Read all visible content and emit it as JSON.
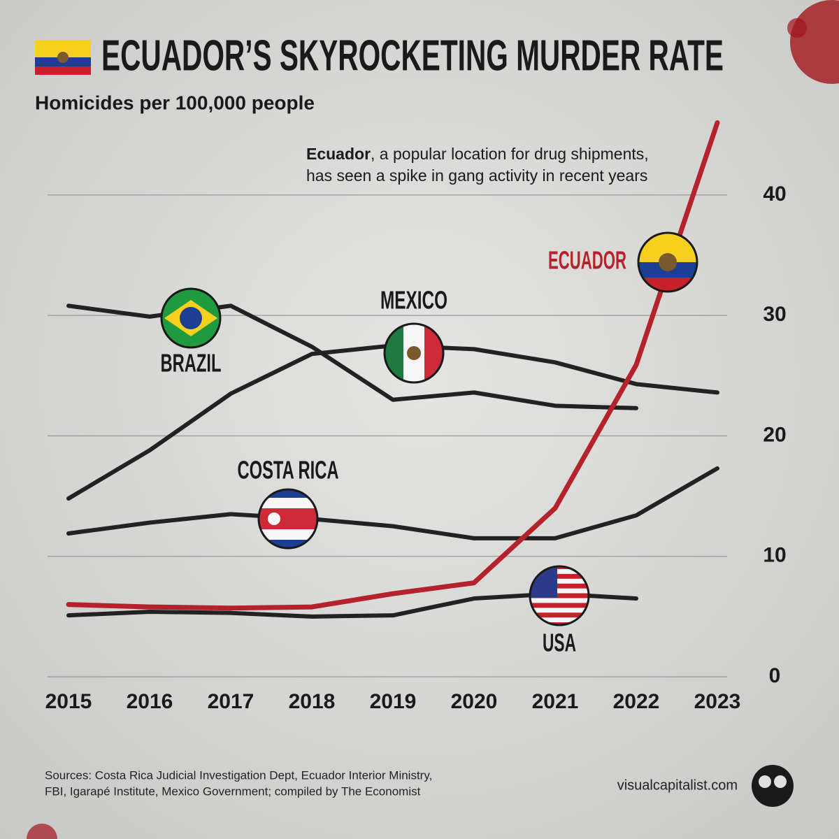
{
  "chart_data": {
    "type": "line",
    "title": "ECUADOR’S SKYROCKETING MURDER RATE",
    "subtitle": "Homicides per 100,000 people",
    "annotation": {
      "bold": "Ecuador",
      "lines": [
        ", a popular location for drug shipments,",
        "has seen a spike in gang activity in recent years"
      ]
    },
    "categories": [
      "2015",
      "2016",
      "2017",
      "2018",
      "2019",
      "2020",
      "2021",
      "2022",
      "2023"
    ],
    "series": [
      {
        "name": "ECUADOR",
        "color": "#b5222b",
        "values": [
          6.0,
          5.8,
          5.7,
          5.8,
          6.9,
          7.8,
          14,
          25.9,
          46
        ]
      },
      {
        "name": "MEXICO",
        "color": "#222222",
        "values": [
          14.8,
          18.8,
          23.5,
          26.8,
          27.5,
          27.2,
          26.1,
          24.3,
          23.6
        ]
      },
      {
        "name": "BRAZIL",
        "color": "#222222",
        "values": [
          30.8,
          29.9,
          30.8,
          27.4,
          23,
          23.6,
          22.5,
          22.3,
          null
        ]
      },
      {
        "name": "COSTA RICA",
        "color": "#222222",
        "values": [
          11.9,
          12.8,
          13.5,
          13.1,
          12.5,
          11.5,
          11.5,
          13.4,
          17.3
        ]
      },
      {
        "name": "USA",
        "color": "#222222",
        "values": [
          5.1,
          5.4,
          5.3,
          5.0,
          5.1,
          6.5,
          6.9,
          6.5,
          null
        ]
      }
    ],
    "ylim": [
      0,
      48
    ],
    "yticks": [
      0,
      10,
      20,
      30,
      40
    ],
    "grid": true,
    "source": [
      "Sources: Costa Rica Judicial Investigation Dept, Ecuador Interior Ministry,",
      "FBI, Igarapé Institute, Mexico Government; compiled by The Economist"
    ],
    "credit": "visualcapitalist.com"
  }
}
